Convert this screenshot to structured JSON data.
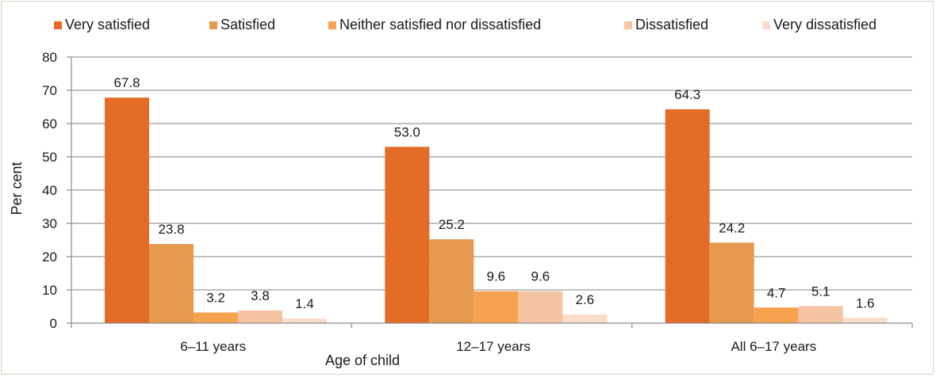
{
  "chart_data": {
    "type": "bar",
    "title": "",
    "xlabel": "Age of child",
    "ylabel": "Per cent",
    "ylim": [
      0,
      80
    ],
    "yticks": [
      0,
      10,
      20,
      30,
      40,
      50,
      60,
      70,
      80
    ],
    "categories": [
      "6–11 years",
      "12–17 years",
      "All 6–17 years"
    ],
    "grid": "horizontal",
    "legend_position": "top",
    "series": [
      {
        "name": "Very satisfied",
        "color": "#e46c26",
        "values": [
          67.8,
          53.0,
          64.3
        ],
        "labels": [
          "67.8",
          "53.0",
          "64.3"
        ]
      },
      {
        "name": "Satisfied",
        "color": "#e59a50",
        "values": [
          23.8,
          25.2,
          24.2
        ],
        "labels": [
          "23.8",
          "25.2",
          "24.2"
        ]
      },
      {
        "name": "Neither satisfied nor dissatisfied",
        "color": "#f7a24f",
        "values": [
          3.2,
          9.6,
          4.7
        ],
        "labels": [
          "3.2",
          "9.6",
          "4.7"
        ]
      },
      {
        "name": "Dissatisfied",
        "color": "#f5c4a2",
        "values": [
          3.8,
          9.6,
          5.1
        ],
        "labels": [
          "3.8",
          "9.6",
          "5.1"
        ]
      },
      {
        "name": "Very dissatisfied",
        "color": "#fbdccb",
        "values": [
          1.4,
          2.6,
          1.6
        ],
        "labels": [
          "1.4",
          "2.6",
          "1.6"
        ]
      }
    ]
  }
}
